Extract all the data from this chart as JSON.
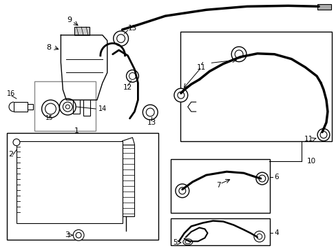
{
  "bg_color": "#ffffff",
  "line_color": "#000000",
  "gray_color": "#888888",
  "fig_width": 4.89,
  "fig_height": 3.6,
  "dpi": 100
}
